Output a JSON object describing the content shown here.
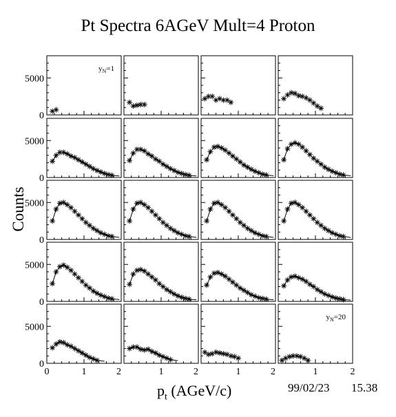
{
  "title": "Pt Spectra 6AGeV Mult=4 Proton",
  "xlabel_main": "p",
  "xlabel_sub": "t",
  "xlabel_unit": "(AGeV/c)",
  "ylabel": "Counts",
  "date": "99/02/23",
  "time": "15.38",
  "chart_data": {
    "type": "scatter",
    "grid": false,
    "layout": "5x4 panels",
    "xlim": [
      0,
      2
    ],
    "ylim": [
      0,
      8000
    ],
    "x_ticks": [
      "0",
      "1",
      "2"
    ],
    "y_ticks": [
      "0",
      "5000"
    ],
    "panels": [
      {
        "label_main": "y",
        "label_sub": "N",
        "label_value": "=1",
        "x": [
          0.15,
          0.25
        ],
        "y": [
          500,
          700
        ],
        "fit": false
      },
      {
        "x": [
          0.15,
          0.25,
          0.35,
          0.45,
          0.55
        ],
        "y": [
          1700,
          1200,
          1300,
          1400,
          1400
        ],
        "fit": false
      },
      {
        "x": [
          0.1,
          0.2,
          0.3,
          0.4,
          0.5,
          0.6,
          0.7,
          0.8
        ],
        "y": [
          2200,
          2500,
          2500,
          2000,
          2200,
          2000,
          2000,
          1700
        ],
        "fit": false
      },
      {
        "x": [
          0.15,
          0.25,
          0.35,
          0.45,
          0.55,
          0.65,
          0.75,
          0.85,
          0.95,
          1.05,
          1.15
        ],
        "y": [
          2200,
          2700,
          3000,
          2900,
          2600,
          2500,
          2300,
          2000,
          1600,
          1200,
          900
        ],
        "fit": false
      },
      {
        "x": [
          0.15,
          0.25,
          0.35,
          0.45,
          0.55,
          0.65,
          0.75,
          0.85,
          0.95,
          1.05,
          1.15,
          1.25,
          1.35,
          1.45,
          1.55,
          1.65,
          1.75
        ],
        "y": [
          2200,
          3000,
          3400,
          3400,
          3200,
          2900,
          2700,
          2400,
          2100,
          1800,
          1500,
          1200,
          950,
          750,
          550,
          400,
          300
        ],
        "fit": true
      },
      {
        "x": [
          0.15,
          0.25,
          0.35,
          0.45,
          0.55,
          0.65,
          0.75,
          0.85,
          0.95,
          1.05,
          1.15,
          1.25,
          1.35,
          1.45,
          1.55,
          1.65,
          1.75
        ],
        "y": [
          2300,
          3300,
          3800,
          3800,
          3600,
          3200,
          2900,
          2500,
          2200,
          1800,
          1500,
          1200,
          950,
          700,
          550,
          400,
          300
        ],
        "fit": true
      },
      {
        "x": [
          0.15,
          0.25,
          0.35,
          0.45,
          0.55,
          0.65,
          0.75,
          0.85,
          0.95,
          1.05,
          1.15,
          1.25,
          1.35,
          1.45,
          1.55,
          1.65,
          1.75
        ],
        "y": [
          2400,
          3500,
          4100,
          4200,
          4000,
          3700,
          3300,
          2900,
          2500,
          2100,
          1700,
          1400,
          1100,
          850,
          650,
          450,
          350
        ],
        "fit": true
      },
      {
        "x": [
          0.15,
          0.25,
          0.35,
          0.45,
          0.55,
          0.65,
          0.75,
          0.85,
          0.95,
          1.05,
          1.15,
          1.25,
          1.35,
          1.45,
          1.55,
          1.65,
          1.75
        ],
        "y": [
          2400,
          3900,
          4500,
          4700,
          4500,
          4100,
          3600,
          3100,
          2600,
          2200,
          1800,
          1400,
          1100,
          850,
          650,
          450,
          350
        ],
        "fit": true
      },
      {
        "x": [
          0.15,
          0.25,
          0.35,
          0.45,
          0.55,
          0.65,
          0.75,
          0.85,
          0.95,
          1.05,
          1.15,
          1.25,
          1.35,
          1.45,
          1.55,
          1.65,
          1.75
        ],
        "y": [
          2500,
          4100,
          4900,
          5000,
          4700,
          4300,
          3800,
          3300,
          2800,
          2300,
          1900,
          1500,
          1200,
          900,
          700,
          500,
          400
        ],
        "fit": true
      },
      {
        "x": [
          0.15,
          0.25,
          0.35,
          0.45,
          0.55,
          0.65,
          0.75,
          0.85,
          0.95,
          1.05,
          1.15,
          1.25,
          1.35,
          1.45,
          1.55,
          1.65,
          1.75
        ],
        "y": [
          2500,
          4100,
          4900,
          5000,
          4700,
          4300,
          3800,
          3300,
          2800,
          2300,
          1900,
          1500,
          1200,
          900,
          700,
          500,
          400
        ],
        "fit": true
      },
      {
        "x": [
          0.15,
          0.25,
          0.35,
          0.45,
          0.55,
          0.65,
          0.75,
          0.85,
          0.95,
          1.05,
          1.15,
          1.25,
          1.35,
          1.45,
          1.55,
          1.65,
          1.75
        ],
        "y": [
          2500,
          4100,
          4900,
          5000,
          4700,
          4300,
          3800,
          3300,
          2800,
          2300,
          1900,
          1500,
          1200,
          900,
          700,
          500,
          400
        ],
        "fit": true
      },
      {
        "x": [
          0.15,
          0.25,
          0.35,
          0.45,
          0.55,
          0.65,
          0.75,
          0.85,
          0.95,
          1.05,
          1.15,
          1.25,
          1.35,
          1.45,
          1.55,
          1.65,
          1.75
        ],
        "y": [
          2500,
          4100,
          4900,
          5000,
          4700,
          4300,
          3800,
          3300,
          2800,
          2300,
          1900,
          1500,
          1200,
          900,
          700,
          500,
          400
        ],
        "fit": true
      },
      {
        "x": [
          0.15,
          0.25,
          0.35,
          0.45,
          0.55,
          0.65,
          0.75,
          0.85,
          0.95,
          1.05,
          1.15,
          1.25,
          1.35,
          1.45,
          1.55,
          1.65,
          1.75
        ],
        "y": [
          2400,
          4000,
          4700,
          4900,
          4600,
          4200,
          3700,
          3200,
          2700,
          2200,
          1800,
          1400,
          1100,
          850,
          650,
          450,
          350
        ],
        "fit": true
      },
      {
        "x": [
          0.15,
          0.25,
          0.35,
          0.45,
          0.55,
          0.65,
          0.75,
          0.85,
          0.95,
          1.05,
          1.15,
          1.25,
          1.35,
          1.45,
          1.55,
          1.65,
          1.75
        ],
        "y": [
          2300,
          3700,
          4200,
          4300,
          4100,
          3700,
          3300,
          2900,
          2400,
          2000,
          1600,
          1300,
          1000,
          750,
          550,
          400,
          300
        ],
        "fit": true
      },
      {
        "x": [
          0.15,
          0.25,
          0.35,
          0.45,
          0.55,
          0.65,
          0.75,
          0.85,
          0.95,
          1.05,
          1.15,
          1.25,
          1.35,
          1.45,
          1.55,
          1.65,
          1.75
        ],
        "y": [
          2200,
          3300,
          3800,
          3900,
          3700,
          3400,
          3000,
          2600,
          2200,
          1800,
          1500,
          1200,
          900,
          700,
          500,
          400,
          300
        ],
        "fit": true
      },
      {
        "x": [
          0.15,
          0.25,
          0.35,
          0.45,
          0.55,
          0.65,
          0.75,
          0.85,
          0.95,
          1.05,
          1.15,
          1.25,
          1.35,
          1.45,
          1.55,
          1.65,
          1.75
        ],
        "y": [
          2100,
          2900,
          3300,
          3400,
          3200,
          3000,
          2700,
          2300,
          2000,
          1600,
          1300,
          1000,
          800,
          600,
          450,
          350,
          250
        ],
        "fit": true
      },
      {
        "x": [
          0.15,
          0.25,
          0.35,
          0.45,
          0.55,
          0.65,
          0.75,
          0.85,
          0.95,
          1.05,
          1.15,
          1.25,
          1.35
        ],
        "y": [
          2100,
          2600,
          2900,
          2800,
          2500,
          2300,
          2000,
          1700,
          1400,
          1100,
          800,
          600,
          400
        ],
        "fit": true
      },
      {
        "x": [
          0.15,
          0.25,
          0.35,
          0.45,
          0.55,
          0.65,
          0.75,
          0.85,
          0.95,
          1.05,
          1.15,
          1.25
        ],
        "y": [
          2000,
          2200,
          2200,
          1900,
          1800,
          1900,
          1600,
          1400,
          1100,
          900,
          700,
          500
        ],
        "fit": true
      },
      {
        "x": [
          0.1,
          0.2,
          0.3,
          0.4,
          0.5,
          0.6,
          0.7,
          0.8,
          0.9,
          1.0
        ],
        "y": [
          1500,
          1200,
          1300,
          1500,
          1400,
          1300,
          1200,
          1000,
          900,
          700
        ],
        "fit": false
      },
      {
        "label_main": "y",
        "label_sub": "N",
        "label_value": "=20",
        "x": [
          0.1,
          0.2,
          0.3,
          0.4,
          0.5,
          0.6,
          0.7,
          0.8
        ],
        "y": [
          400,
          700,
          900,
          1000,
          1000,
          900,
          700,
          400
        ],
        "fit": false
      }
    ]
  }
}
